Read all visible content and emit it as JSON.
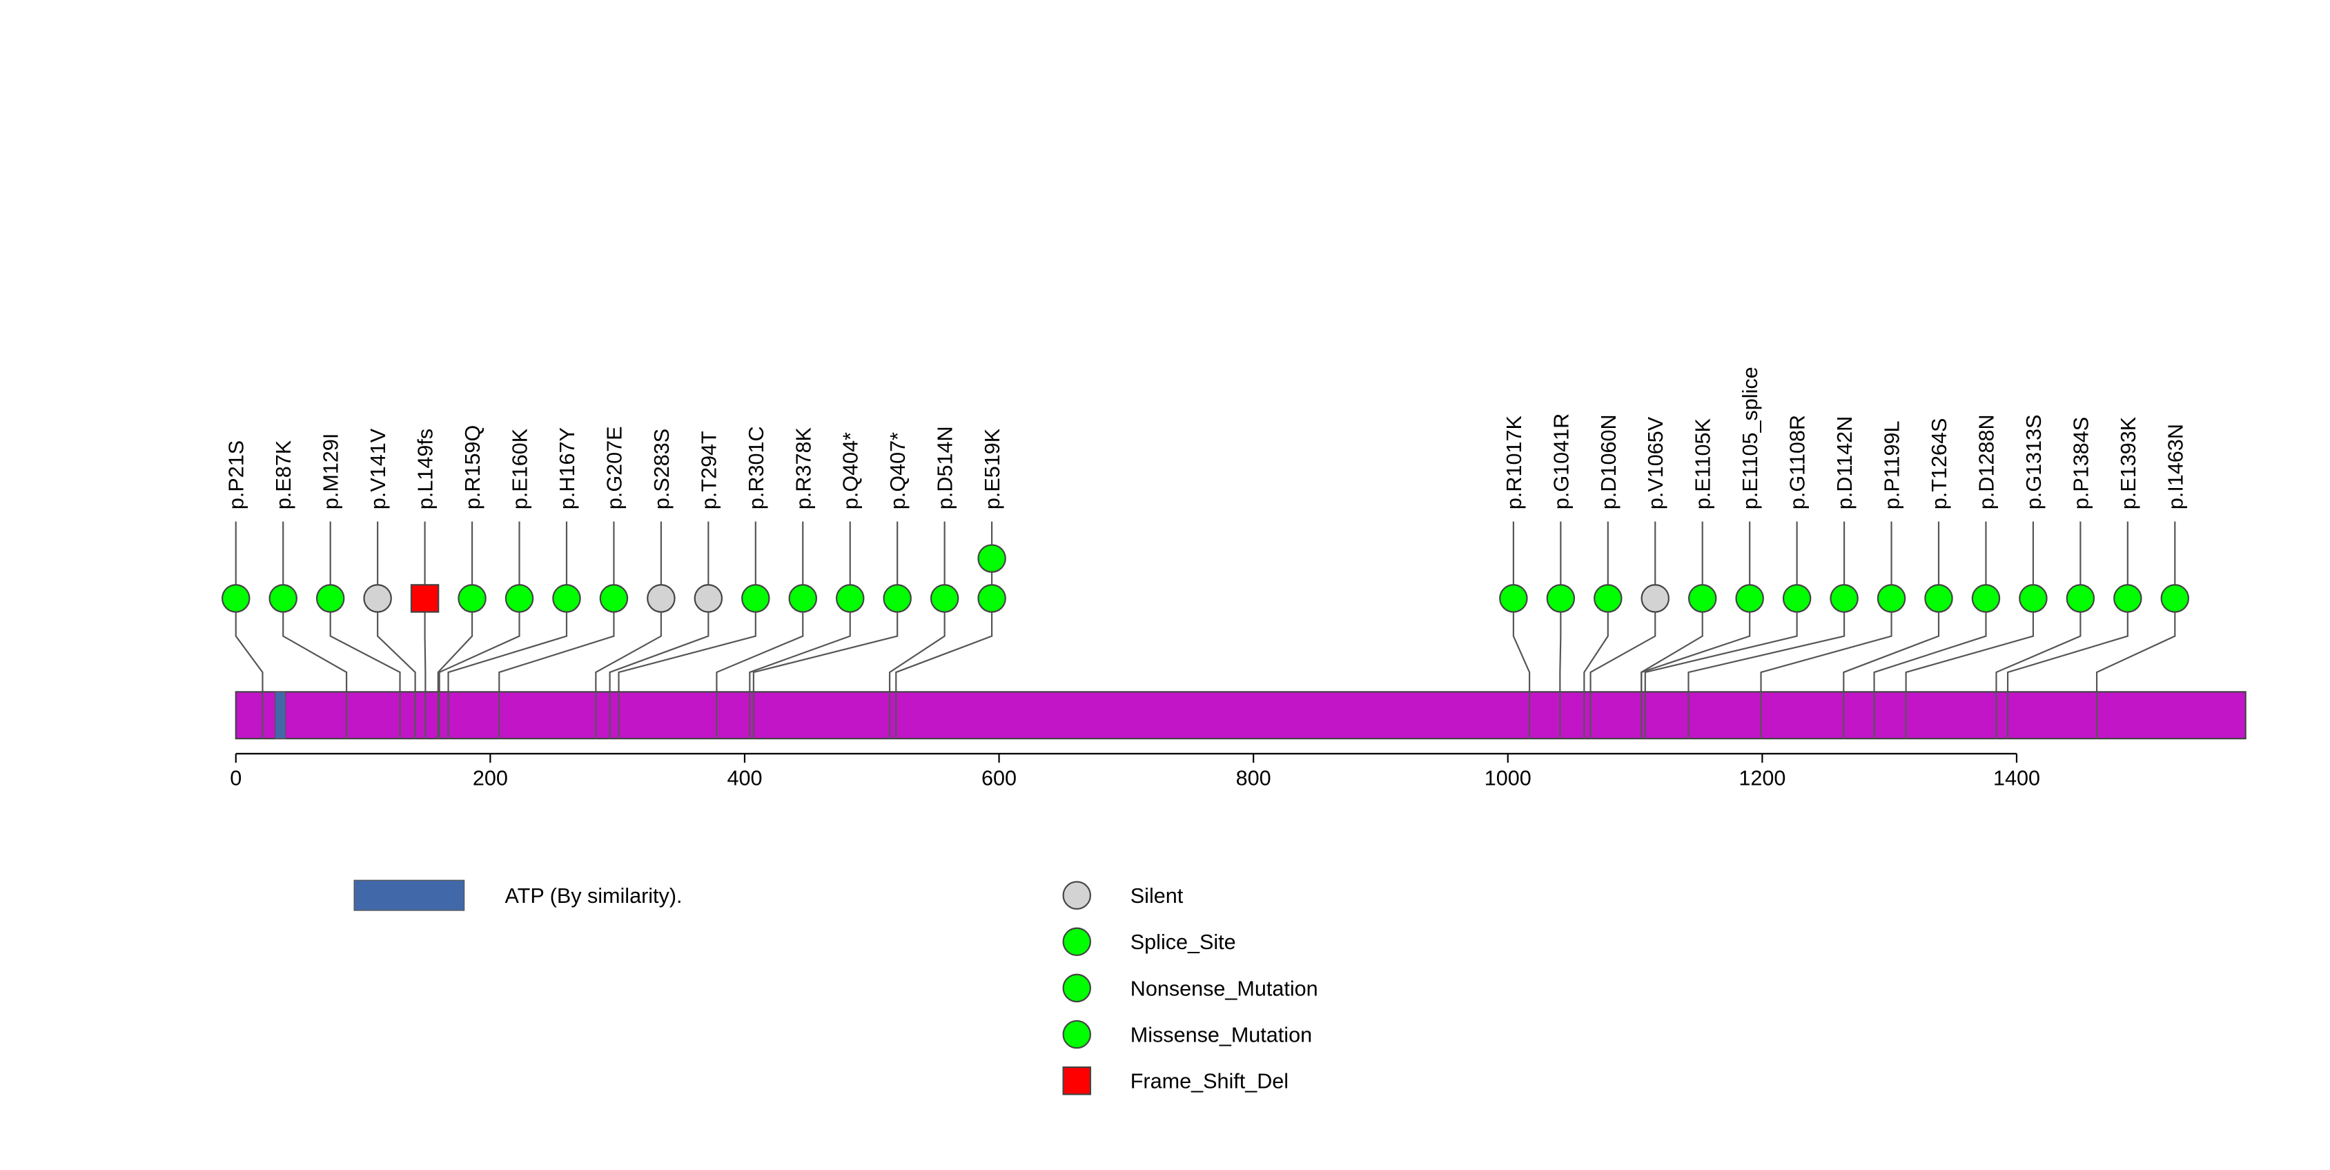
{
  "chart_data": {
    "type": "lollipop",
    "protein_length": 1580,
    "xlim": [
      0,
      1580
    ],
    "x_ticks": [
      0,
      200,
      400,
      600,
      800,
      1000,
      1200,
      1400
    ],
    "x_tick_labels": [
      "0",
      "200",
      "400",
      "600",
      "800",
      "1000",
      "1200",
      "1400"
    ],
    "protein_color": "#C215C8",
    "domains": [
      {
        "name": "ATP (By similarity).",
        "start": 31,
        "end": 39,
        "color": "#4169AA"
      }
    ],
    "mutations": [
      {
        "label": "p.P21S",
        "position": 21,
        "type": "Missense_Mutation",
        "count": 1
      },
      {
        "label": "p.E87K",
        "position": 87,
        "type": "Missense_Mutation",
        "count": 1
      },
      {
        "label": "p.M129I",
        "position": 129,
        "type": "Missense_Mutation",
        "count": 1
      },
      {
        "label": "p.V141V",
        "position": 141,
        "type": "Silent",
        "count": 1
      },
      {
        "label": "p.L149fs",
        "position": 149,
        "type": "Frame_Shift_Del",
        "count": 1
      },
      {
        "label": "p.R159Q",
        "position": 159,
        "type": "Missense_Mutation",
        "count": 1
      },
      {
        "label": "p.E160K",
        "position": 160,
        "type": "Missense_Mutation",
        "count": 1
      },
      {
        "label": "p.H167Y",
        "position": 167,
        "type": "Missense_Mutation",
        "count": 1
      },
      {
        "label": "p.G207E",
        "position": 207,
        "type": "Missense_Mutation",
        "count": 1
      },
      {
        "label": "p.S283S",
        "position": 283,
        "type": "Silent",
        "count": 1
      },
      {
        "label": "p.T294T",
        "position": 294,
        "type": "Silent",
        "count": 1
      },
      {
        "label": "p.R301C",
        "position": 301,
        "type": "Missense_Mutation",
        "count": 1
      },
      {
        "label": "p.R378K",
        "position": 378,
        "type": "Missense_Mutation",
        "count": 1
      },
      {
        "label": "p.Q404*",
        "position": 404,
        "type": "Nonsense_Mutation",
        "count": 1
      },
      {
        "label": "p.Q407*",
        "position": 407,
        "type": "Nonsense_Mutation",
        "count": 1
      },
      {
        "label": "p.D514N",
        "position": 514,
        "type": "Missense_Mutation",
        "count": 1
      },
      {
        "label": "p.E519K",
        "position": 519,
        "type": "Missense_Mutation",
        "count": 2
      },
      {
        "label": "p.R1017K",
        "position": 1017,
        "type": "Missense_Mutation",
        "count": 1
      },
      {
        "label": "p.G1041R",
        "position": 1041,
        "type": "Missense_Mutation",
        "count": 1
      },
      {
        "label": "p.D1060N",
        "position": 1060,
        "type": "Missense_Mutation",
        "count": 1
      },
      {
        "label": "p.V1065V",
        "position": 1065,
        "type": "Silent",
        "count": 1
      },
      {
        "label": "p.E1105K",
        "position": 1105,
        "type": "Missense_Mutation",
        "count": 1
      },
      {
        "label": "p.E1105_splice",
        "position": 1105,
        "type": "Splice_Site",
        "count": 1
      },
      {
        "label": "p.G1108R",
        "position": 1108,
        "type": "Missense_Mutation",
        "count": 1
      },
      {
        "label": "p.D1142N",
        "position": 1142,
        "type": "Missense_Mutation",
        "count": 1
      },
      {
        "label": "p.P1199L",
        "position": 1199,
        "type": "Missense_Mutation",
        "count": 1
      },
      {
        "label": "p.T1264S",
        "position": 1264,
        "type": "Missense_Mutation",
        "count": 1
      },
      {
        "label": "p.D1288N",
        "position": 1288,
        "type": "Missense_Mutation",
        "count": 1
      },
      {
        "label": "p.G1313S",
        "position": 1313,
        "type": "Missense_Mutation",
        "count": 1
      },
      {
        "label": "p.P1384S",
        "position": 1384,
        "type": "Missense_Mutation",
        "count": 1
      },
      {
        "label": "p.E1393K",
        "position": 1393,
        "type": "Missense_Mutation",
        "count": 1
      },
      {
        "label": "p.I1463N",
        "position": 1463,
        "type": "Missense_Mutation",
        "count": 1
      }
    ],
    "legend": [
      {
        "label": "Silent",
        "shape": "circle",
        "color": "#D3D3D3"
      },
      {
        "label": "Splice_Site",
        "shape": "circle",
        "color": "#00FF00"
      },
      {
        "label": "Nonsense_Mutation",
        "shape": "circle",
        "color": "#00FF00"
      },
      {
        "label": "Missense_Mutation",
        "shape": "circle",
        "color": "#00FF00"
      },
      {
        "label": "Frame_Shift_Del",
        "shape": "square",
        "color": "#FF0000"
      }
    ],
    "type_colors": {
      "Silent": "#D3D3D3",
      "Splice_Site": "#00FF00",
      "Nonsense_Mutation": "#00FF00",
      "Missense_Mutation": "#00FF00",
      "Frame_Shift_Del": "#FF0000"
    }
  }
}
